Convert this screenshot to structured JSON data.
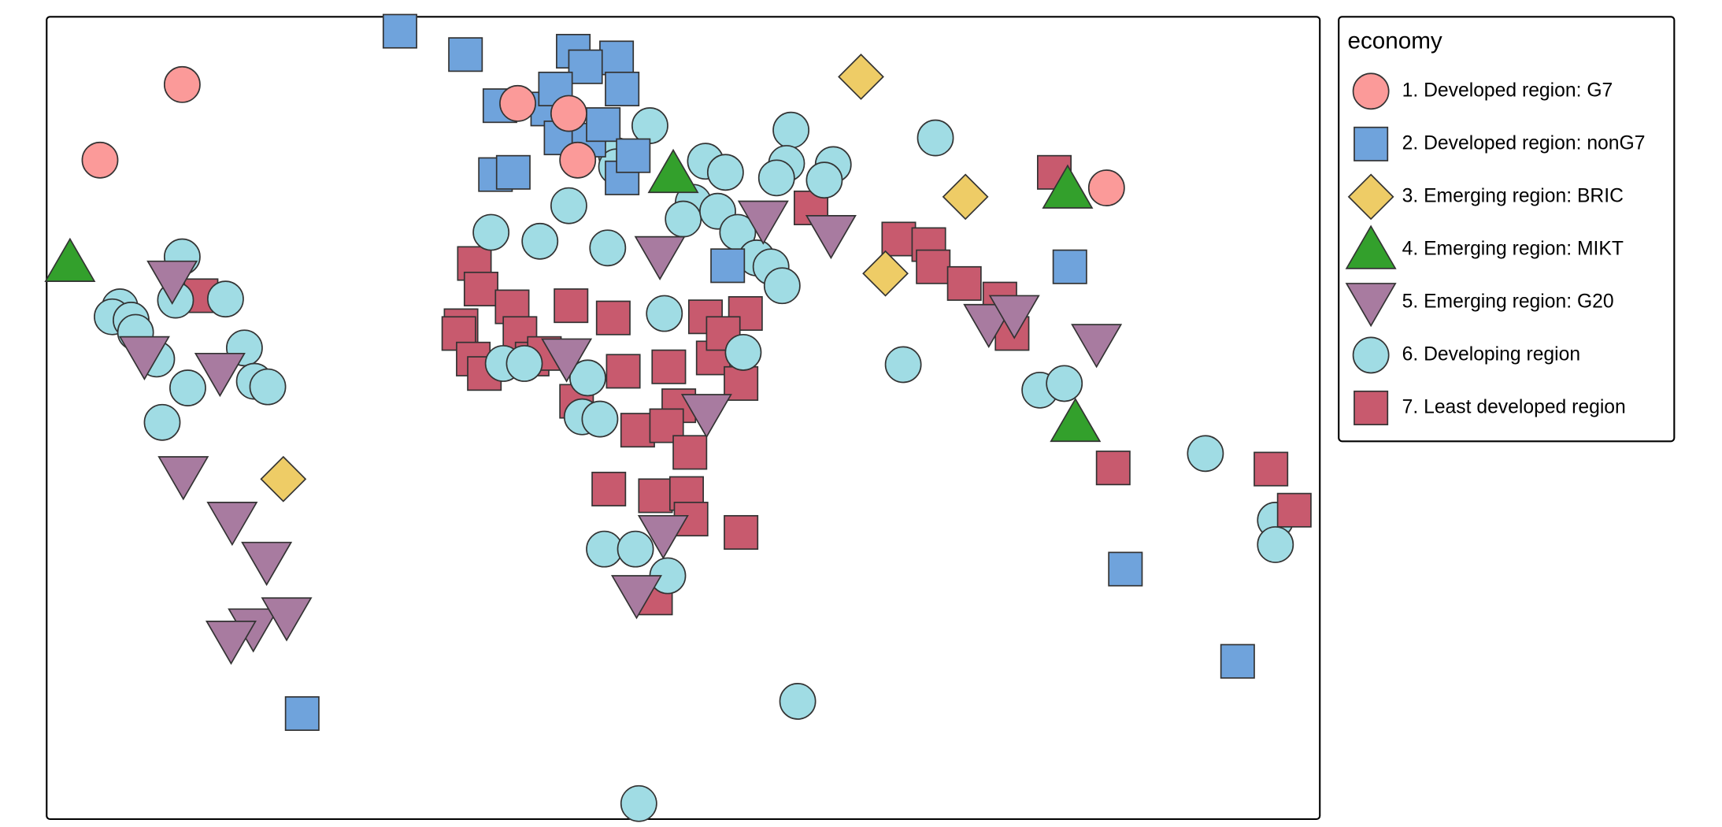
{
  "legend": {
    "title": "economy",
    "items": [
      {
        "label": "1. Developed region: G7",
        "color": "#FB9A99",
        "shape": "circle"
      },
      {
        "label": "2. Developed region: nonG7",
        "color": "#6FA3DC",
        "shape": "square"
      },
      {
        "label": "3. Emerging region: BRIC",
        "color": "#EECC66",
        "shape": "diamond"
      },
      {
        "label": "4. Emerging region: MIKT",
        "color": "#33A02C",
        "shape": "triangle-up"
      },
      {
        "label": "5. Emerging region: G20",
        "color": "#A87BA0",
        "shape": "triangle-down"
      },
      {
        "label": "6. Developing region",
        "color": "#A0DCE4",
        "shape": "circle"
      },
      {
        "label": "7. Least developed region",
        "color": "#C85A6E",
        "shape": "square"
      }
    ]
  }
}
